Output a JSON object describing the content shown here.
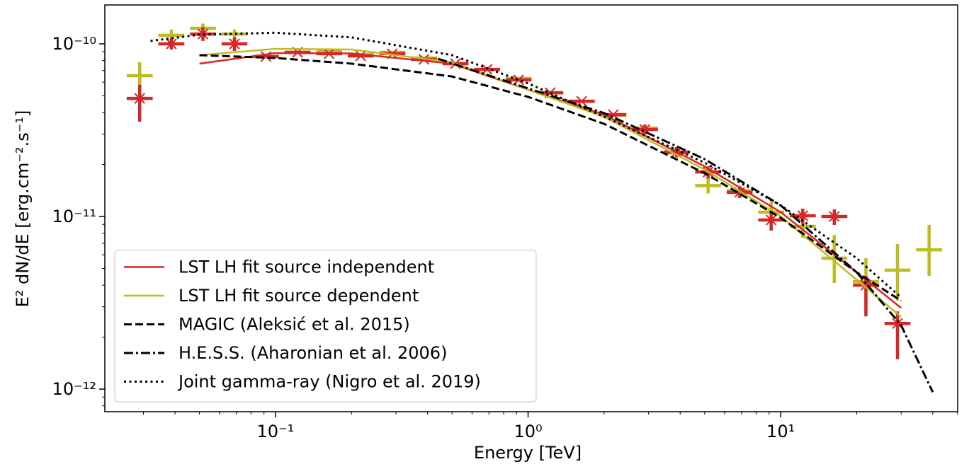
{
  "chart_data": {
    "type": "line",
    "xlabel": "Energy [TeV]",
    "ylabel": "E² dN/dE [erg.cm⁻².s⁻¹]",
    "xscale": "log",
    "yscale": "log",
    "xlim": [
      0.0211,
      50.2
    ],
    "ylim": [
      7.4e-13,
      1.68e-10
    ],
    "xticks": [
      {
        "value": 0.1,
        "label": "10⁻¹"
      },
      {
        "value": 1,
        "label": "10⁰"
      },
      {
        "value": 10,
        "label": "10¹"
      }
    ],
    "yticks": [
      {
        "value": 1e-12,
        "label": "10⁻¹²"
      },
      {
        "value": 1e-11,
        "label": "10⁻¹¹"
      },
      {
        "value": 1e-10,
        "label": "10⁻¹⁰"
      }
    ],
    "xminorticks": [
      0.03,
      0.04,
      0.05,
      0.06,
      0.07,
      0.08,
      0.09,
      0.2,
      0.3,
      0.4,
      0.5,
      0.6,
      0.7,
      0.8,
      0.9,
      2,
      3,
      4,
      5,
      6,
      7,
      8,
      9,
      20,
      30,
      40,
      50
    ],
    "yminorticks": [
      8e-13,
      9e-13,
      2e-12,
      3e-12,
      4e-12,
      5e-12,
      6e-12,
      7e-12,
      8e-12,
      9e-12,
      2e-11,
      3e-11,
      4e-11,
      5e-11,
      6e-11,
      7e-11,
      8e-11,
      9e-11
    ],
    "legend": "lower left",
    "bins": [
      0.0251,
      0.0335,
      0.0447,
      0.0596,
      0.0794,
      0.1059,
      0.1413,
      0.1884,
      0.2512,
      0.335,
      0.447,
      0.596,
      0.794,
      1.059,
      1.413,
      1.884,
      2.512,
      3.35,
      4.47,
      5.96,
      7.94,
      10.59,
      14.13,
      18.84,
      25.12,
      33.5,
      44.7
    ],
    "x": [
      0.029,
      0.0387,
      0.0516,
      0.0688,
      0.0917,
      0.1223,
      0.163,
      0.2175,
      0.29,
      0.387,
      0.516,
      0.688,
      0.917,
      1.223,
      1.63,
      2.175,
      2.9,
      3.87,
      5.16,
      6.88,
      9.17,
      12.23,
      16.3,
      21.75,
      29.0,
      38.7
    ],
    "series": [
      {
        "kind": "points",
        "color": "#bcbd22",
        "marker": "none",
        "values": [
          6.54e-11,
          1.12e-10,
          1.23e-10,
          1.14e-10,
          8.44e-11,
          8.93e-11,
          9.01e-11,
          8.68e-11,
          8.93e-11,
          8.28e-11,
          7.68e-11,
          7.11e-11,
          6.3e-11,
          5.21e-11,
          4.65e-11,
          3.86e-11,
          3.25e-11,
          2.34e-11,
          1.51e-11,
          1.41e-11,
          1.06e-11,
          8.77e-12,
          5.73e-12,
          4.2e-12,
          4.89e-12,
          6.41e-12
        ],
        "ylow": [
          5.26e-11,
          1.04e-10,
          1.14e-10,
          1.06e-10,
          null,
          null,
          null,
          null,
          null,
          null,
          null,
          null,
          null,
          null,
          null,
          null,
          3.05e-11,
          2.17e-11,
          1.36e-11,
          1.28e-11,
          8.93e-12,
          7.53e-12,
          4.12e-12,
          2.77e-12,
          3.25e-12,
          4.53e-12
        ],
        "yhigh": [
          7.82e-11,
          1.21e-10,
          1.31e-10,
          1.21e-10,
          null,
          null,
          null,
          null,
          null,
          null,
          null,
          null,
          null,
          null,
          null,
          null,
          3.41e-11,
          2.52e-11,
          1.7e-11,
          1.51e-11,
          1.22e-11,
          1.01e-11,
          7.81e-12,
          5.73e-12,
          6.92e-12,
          8.93e-12
        ]
      },
      {
        "kind": "points",
        "color": "#d62728",
        "marker": "x",
        "values": [
          4.83e-11,
          1e-10,
          1.14e-10,
          1e-10,
          8.44e-11,
          8.93e-11,
          8.77e-11,
          8.52e-11,
          8.77e-11,
          8.13e-11,
          7.68e-11,
          7.11e-11,
          6.18e-11,
          5.21e-11,
          4.65e-11,
          3.89e-11,
          3.19e-11,
          2.36e-11,
          1.81e-11,
          1.38e-11,
          9.54e-12,
          1.01e-11,
          1e-11,
          4e-12,
          2.4e-12,
          null
        ],
        "ylow": [
          3.54e-11,
          9.27e-11,
          1.04e-10,
          9.1e-11,
          null,
          null,
          null,
          null,
          null,
          null,
          null,
          null,
          null,
          null,
          null,
          null,
          2.99e-11,
          2.21e-11,
          1.66e-11,
          1.28e-11,
          8.28e-12,
          9.1e-12,
          8.93e-12,
          2.64e-12,
          1.49e-12,
          null
        ],
        "yhigh": [
          5.8e-11,
          1.08e-10,
          1.25e-10,
          1.09e-10,
          null,
          null,
          null,
          null,
          null,
          null,
          null,
          null,
          null,
          null,
          null,
          null,
          3.41e-11,
          2.52e-11,
          1.95e-11,
          1.49e-11,
          1.09e-11,
          1.11e-11,
          1.1e-11,
          4.53e-12,
          2.82e-12,
          null
        ]
      },
      {
        "kind": "line",
        "name": "LST LH fit source independent",
        "color": "#d62728",
        "linestyle": "solid",
        "x": [
          0.05,
          0.1,
          0.2,
          0.5,
          1,
          2,
          5,
          10,
          20,
          30
        ],
        "values": [
          7.68e-11,
          8.84e-11,
          8.8e-11,
          7.68e-11,
          5.42e-11,
          3.89e-11,
          1.95e-11,
          1.06e-11,
          4.75e-12,
          2.95e-12
        ]
      },
      {
        "kind": "line",
        "name": "LST LH fit source dependent",
        "color": "#bcbd22",
        "linestyle": "solid",
        "x": [
          0.05,
          0.1,
          0.2,
          0.5,
          1,
          2,
          5,
          10,
          20,
          30
        ],
        "values": [
          8.6e-11,
          9.36e-11,
          9.27e-11,
          7.82e-11,
          5.42e-11,
          3.78e-11,
          1.87e-11,
          1e-11,
          4.3e-12,
          2.62e-12
        ]
      },
      {
        "kind": "line",
        "name": "MAGIC (Aleksić et al. 2015)",
        "color": "#000000",
        "linestyle": "dashed",
        "x": [
          0.05,
          0.1,
          0.2,
          0.5,
          1,
          2,
          5,
          10,
          20,
          30
        ],
        "values": [
          8.6e-11,
          8.28e-11,
          7.68e-11,
          6.47e-11,
          4.93e-11,
          3.44e-11,
          1.78e-11,
          9.84e-12,
          4.75e-12,
          3.25e-12
        ]
      },
      {
        "kind": "line",
        "name": "H.E.S.S. (Aharonian et al. 2006)",
        "color": "#000000",
        "linestyle": "dashdot",
        "x": [
          0.44,
          1,
          2,
          5,
          10,
          20,
          30,
          40
        ],
        "values": [
          8.2e-11,
          5.52e-11,
          3.97e-11,
          2.15e-11,
          1.16e-11,
          4.75e-12,
          2.34e-12,
          9.6e-13
        ]
      },
      {
        "kind": "line",
        "name": "Joint gamma-ray (Nigro et al. 2019)",
        "color": "#000000",
        "linestyle": "dotted",
        "x": [
          0.032,
          0.05,
          0.1,
          0.2,
          0.5,
          1,
          2,
          5,
          10,
          20,
          30
        ],
        "values": [
          1.04e-10,
          1.13e-10,
          1.16e-10,
          1.09e-10,
          8.6e-11,
          5.9e-11,
          3.78e-11,
          2.05e-11,
          1.16e-11,
          5.73e-12,
          3.39e-12
        ]
      }
    ]
  }
}
